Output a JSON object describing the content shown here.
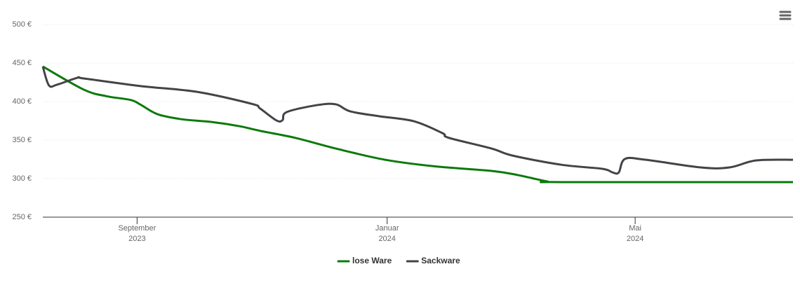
{
  "chart_data": {
    "type": "line",
    "xlim": [
      "2023-07-17",
      "2024-07-17"
    ],
    "xticks": [
      {
        "value": "2023-09-01",
        "label": [
          "September",
          "2023"
        ]
      },
      {
        "value": "2024-01-01",
        "label": [
          "Januar",
          "2024"
        ]
      },
      {
        "value": "2024-05-01",
        "label": [
          "Mai",
          "2024"
        ]
      }
    ],
    "ylim": [
      250,
      500
    ],
    "yticks": [
      {
        "value": 250,
        "label": "250 €"
      },
      {
        "value": 300,
        "label": "300 €"
      },
      {
        "value": 350,
        "label": "350 €"
      },
      {
        "value": 400,
        "label": "400 €"
      },
      {
        "value": 450,
        "label": "450 €"
      },
      {
        "value": 500,
        "label": "500 €"
      }
    ],
    "grid": true,
    "legend": "bottom",
    "series": [
      {
        "name": "lose Ware",
        "color": "#0a7a0a",
        "x": [
          "2023-07-17",
          "2023-08-06",
          "2023-08-17",
          "2023-08-29",
          "2023-09-03",
          "2023-09-11",
          "2023-09-23",
          "2023-10-07",
          "2023-10-21",
          "2023-10-31",
          "2023-11-17",
          "2023-12-07",
          "2023-12-31",
          "2024-01-24",
          "2024-02-21",
          "2024-03-05",
          "2024-03-19",
          "2024-03-26",
          "2024-07-17"
        ],
        "values": [
          445.5,
          415.5,
          407,
          402,
          395.5,
          383.6,
          377,
          373.6,
          368,
          362,
          353,
          339,
          324.5,
          316,
          310,
          304.5,
          296.4,
          295.5,
          295.5
        ]
      },
      {
        "name": "Sackware",
        "color": "#434348",
        "x": [
          "2023-07-17",
          "2023-07-20",
          "2023-07-24",
          "2023-08-03",
          "2023-08-06",
          "2023-09-03",
          "2023-09-30",
          "2023-10-27",
          "2023-10-31",
          "2023-11-08",
          "2023-11-11",
          "2023-11-13",
          "2023-11-28",
          "2023-12-07",
          "2023-12-14",
          "2023-12-28",
          "2024-01-14",
          "2024-01-28",
          "2024-01-31",
          "2024-02-21",
          "2024-03-02",
          "2024-03-26",
          "2024-04-15",
          "2024-04-20",
          "2024-04-23",
          "2024-04-26",
          "2024-05-06",
          "2024-06-02",
          "2024-06-16",
          "2024-06-29",
          "2024-07-17"
        ],
        "values": [
          445.5,
          421,
          422,
          431,
          430,
          420,
          412.7,
          397,
          391,
          375.5,
          376,
          386.4,
          395.5,
          396.4,
          387.3,
          381,
          374.5,
          359,
          353,
          339,
          330,
          318,
          312.7,
          308,
          308,
          325.5,
          324.5,
          314.5,
          314.5,
          323.6,
          324.5
        ]
      }
    ]
  }
}
